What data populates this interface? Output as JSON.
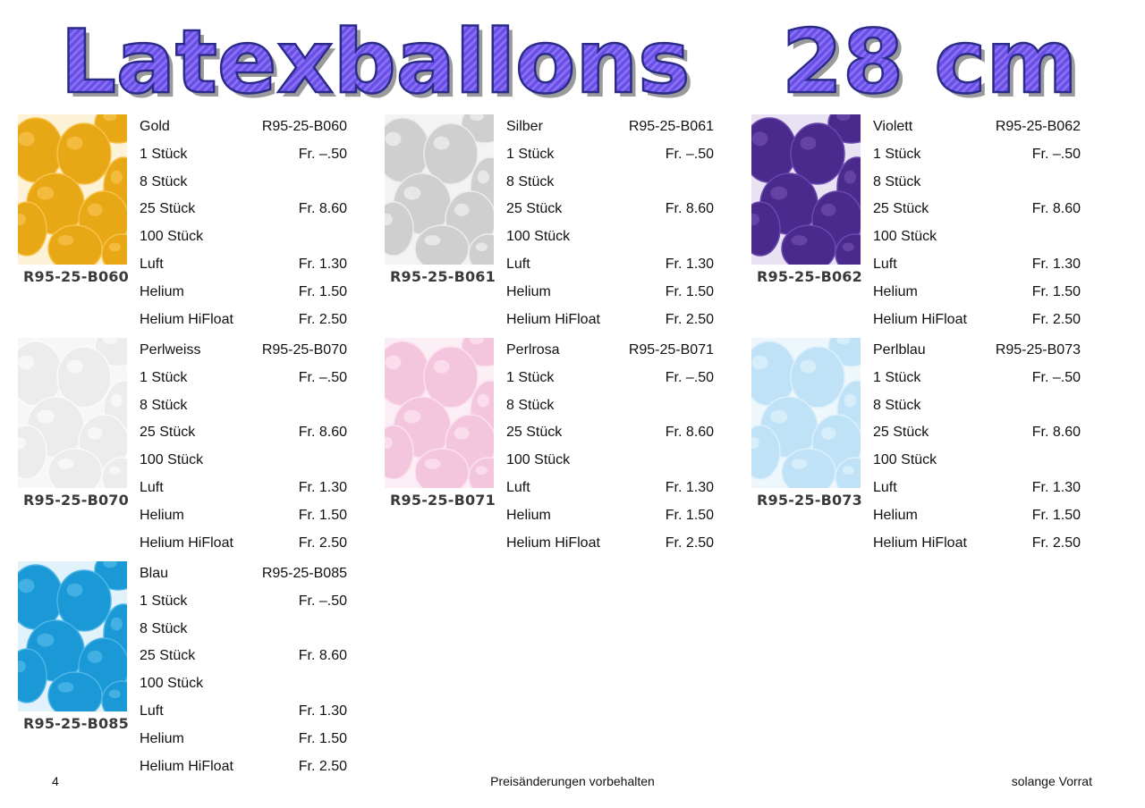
{
  "title": "Latexballons   28 cm",
  "title_colors": {
    "fill": "#6a4ee8",
    "stripe": "#8a73f2",
    "outline": "#2b2b8a",
    "shadow": "#9a9a9a"
  },
  "row_labels": [
    "1 Stück",
    "8 Stück",
    "25 Stück",
    "100 Stück",
    "Luft",
    "Helium",
    "Helium HiFloat"
  ],
  "products": [
    {
      "color_name": "Gold",
      "code": "R95-25-B060",
      "thumb_label": "R95-25-B060",
      "balloon_color": "#e8a715",
      "balloon_light": "#f6c24a",
      "bg": "#fbf2d8",
      "prices": [
        "Fr. –.50",
        "",
        "Fr. 8.60",
        "",
        "Fr. 1.30",
        "Fr. 1.50",
        "Fr. 2.50"
      ]
    },
    {
      "color_name": "Silber",
      "code": "R95-25-B061",
      "thumb_label": "R95-25-B061",
      "balloon_color": "#cfcfcf",
      "balloon_light": "#ececec",
      "bg": "#f3f3f3",
      "prices": [
        "Fr. –.50",
        "",
        "Fr. 8.60",
        "",
        "Fr. 1.30",
        "Fr. 1.50",
        "Fr. 2.50"
      ]
    },
    {
      "color_name": "Violett",
      "code": "R95-25-B062",
      "thumb_label": "R95-25-B062",
      "balloon_color": "#4a2a8c",
      "balloon_light": "#6a48ad",
      "bg": "#e8e2f3",
      "prices": [
        "Fr. –.50",
        "",
        "Fr. 8.60",
        "",
        "Fr. 1.30",
        "Fr. 1.50",
        "Fr. 2.50"
      ]
    },
    {
      "color_name": "Perlweiss",
      "code": "R95-25-B070",
      "thumb_label": "R95-25-B070",
      "balloon_color": "#ececec",
      "balloon_light": "#fafafa",
      "bg": "#f7f7f7",
      "prices": [
        "Fr. –.50",
        "",
        "Fr. 8.60",
        "",
        "Fr. 1.30",
        "Fr. 1.50",
        "Fr. 2.50"
      ]
    },
    {
      "color_name": "Perlrosa",
      "code": "R95-25-B071",
      "thumb_label": "R95-25-B071",
      "balloon_color": "#f3c6dd",
      "balloon_light": "#fbe1ee",
      "bg": "#fbeff5",
      "prices": [
        "Fr. –.50",
        "",
        "Fr. 8.60",
        "",
        "Fr. 1.30",
        "Fr. 1.50",
        "Fr. 2.50"
      ]
    },
    {
      "color_name": "Perlblau",
      "code": "R95-25-B073",
      "thumb_label": "R95-25-B073",
      "balloon_color": "#bfe2f6",
      "balloon_light": "#dcf0fb",
      "bg": "#eef7fc",
      "prices": [
        "Fr. –.50",
        "",
        "Fr. 8.60",
        "",
        "Fr. 1.30",
        "Fr. 1.50",
        "Fr. 2.50"
      ]
    },
    {
      "color_name": "Blau",
      "code": "R95-25-B085",
      "thumb_label": "R95-25-B085",
      "balloon_color": "#1a99d6",
      "balloon_light": "#4cb5e6",
      "bg": "#e2f2fa",
      "prices": [
        "Fr. –.50",
        "",
        "Fr. 8.60",
        "",
        "Fr. 1.30",
        "Fr. 1.50",
        "Fr. 2.50"
      ]
    }
  ],
  "footer": {
    "page_number": "4",
    "center_note": "Preisänderungen vorbehalten",
    "right_note": "solange Vorrat"
  }
}
